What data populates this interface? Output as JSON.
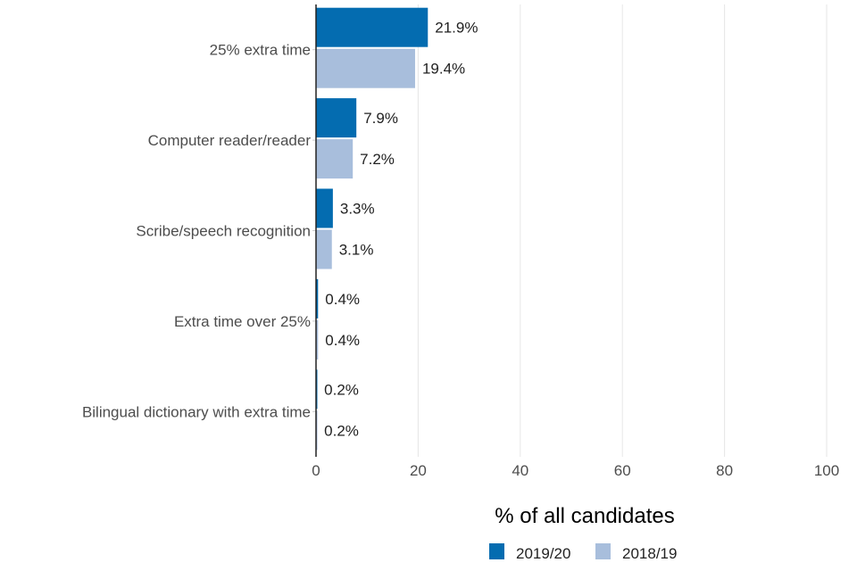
{
  "chart_data": {
    "type": "bar",
    "orientation": "horizontal",
    "title": "",
    "xlabel": "% of all candidates",
    "ylabel": "",
    "xlim": [
      0,
      100
    ],
    "xticks": [
      "0",
      "20",
      "40",
      "60",
      "80",
      "100"
    ],
    "categories": [
      "25% extra time",
      "Computer reader/reader",
      "Scribe/speech recognition",
      "Extra time over 25%",
      "Bilingual dictionary with extra time"
    ],
    "series": [
      {
        "name": "2019/20",
        "color": "#046cb0",
        "values": [
          21.9,
          7.9,
          3.3,
          0.4,
          0.2
        ],
        "labels": [
          "21.9%",
          "7.9%",
          "3.3%",
          "0.4%",
          "0.2%"
        ]
      },
      {
        "name": "2018/19",
        "color": "#a8bedc",
        "values": [
          19.4,
          7.2,
          3.1,
          0.4,
          0.2
        ],
        "labels": [
          "19.4%",
          "7.2%",
          "3.1%",
          "0.4%",
          "0.2%"
        ]
      }
    ],
    "grid": true,
    "legend_position": "bottom"
  }
}
